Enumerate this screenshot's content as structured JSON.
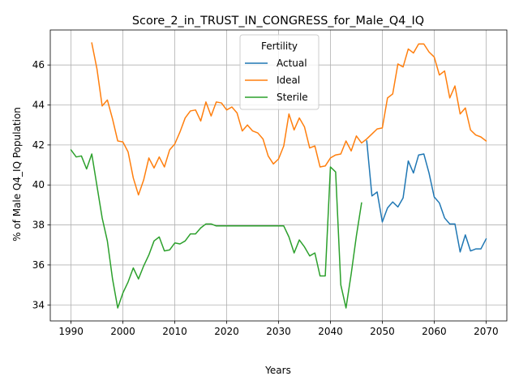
{
  "chart_data": {
    "type": "line",
    "title": "Score_2_in_TRUST_IN_CONGRESS_for_Male_Q4_IQ",
    "xlabel": "Years",
    "ylabel": "% of Male Q4_IQ Population",
    "xlim": [
      1986,
      2074
    ],
    "ylim": [
      33.2,
      47.75
    ],
    "xticks": [
      1990,
      2000,
      2010,
      2020,
      2030,
      2040,
      2050,
      2060,
      2070
    ],
    "yticks": [
      34,
      36,
      38,
      40,
      42,
      44,
      46
    ],
    "grid": true,
    "legend": {
      "title": "Fertility",
      "placement": "upper center"
    },
    "series": [
      {
        "name": "Actual",
        "color": "#1f77b4",
        "x": [
          2047,
          2048,
          2049,
          2050,
          2051,
          2052,
          2053,
          2054,
          2055,
          2056,
          2057,
          2058,
          2059,
          2060,
          2061,
          2062,
          2063,
          2064,
          2065,
          2066,
          2067,
          2068,
          2069,
          2070
        ],
        "y": [
          42.2,
          39.45,
          39.65,
          38.15,
          38.85,
          39.15,
          38.9,
          39.35,
          41.2,
          40.6,
          41.5,
          41.55,
          40.6,
          39.4,
          39.1,
          38.35,
          38.05,
          38.05,
          36.65,
          37.5,
          36.7,
          36.8,
          36.8,
          37.3
        ]
      },
      {
        "name": "Ideal",
        "color": "#ff7f0e",
        "x": [
          1994,
          1995,
          1996,
          1997,
          1998,
          1999,
          2000,
          2001,
          2002,
          2003,
          2004,
          2005,
          2006,
          2007,
          2008,
          2009,
          2010,
          2011,
          2012,
          2013,
          2014,
          2015,
          2016,
          2017,
          2018,
          2019,
          2020,
          2021,
          2022,
          2023,
          2024,
          2025,
          2026,
          2027,
          2028,
          2029,
          2030,
          2031,
          2032,
          2033,
          2034,
          2035,
          2036,
          2037,
          2038,
          2039,
          2040,
          2041,
          2042,
          2043,
          2044,
          2045,
          2046,
          2047,
          2048,
          2049,
          2050,
          2051,
          2052,
          2053,
          2054,
          2055,
          2056,
          2057,
          2058,
          2059,
          2060,
          2061,
          2062,
          2063,
          2064,
          2065,
          2066,
          2067,
          2068,
          2069,
          2070
        ],
        "y": [
          47.1,
          45.8,
          43.95,
          44.25,
          43.3,
          42.2,
          42.15,
          41.65,
          40.35,
          39.5,
          40.25,
          41.35,
          40.85,
          41.4,
          40.9,
          41.75,
          42.05,
          42.65,
          43.35,
          43.7,
          43.75,
          43.2,
          44.15,
          43.45,
          44.15,
          44.1,
          43.75,
          43.9,
          43.6,
          42.7,
          43.0,
          42.7,
          42.6,
          42.3,
          41.45,
          41.05,
          41.3,
          41.95,
          43.55,
          42.75,
          43.35,
          42.9,
          41.85,
          41.95,
          40.9,
          40.95,
          41.35,
          41.5,
          41.55,
          42.2,
          41.7,
          42.45,
          42.1,
          42.3,
          42.55,
          42.8,
          42.85,
          44.35,
          44.55,
          46.05,
          45.9,
          46.8,
          46.6,
          47.05,
          47.05,
          46.65,
          46.4,
          45.5,
          45.7,
          44.35,
          44.95,
          43.55,
          43.85,
          42.75,
          42.5,
          42.4,
          42.2
        ]
      },
      {
        "name": "Sterile",
        "color": "#2ca02c",
        "x": [
          1990,
          1991,
          1992,
          1993,
          1994,
          1995,
          1996,
          1997,
          1998,
          1999,
          2000,
          2001,
          2002,
          2003,
          2004,
          2005,
          2006,
          2007,
          2008,
          2009,
          2010,
          2011,
          2012,
          2013,
          2014,
          2015,
          2016,
          2017,
          2018,
          2019,
          2020,
          2021,
          2022,
          2023,
          2024,
          2025,
          2026,
          2027,
          2028,
          2029,
          2030,
          2031,
          2032,
          2033,
          2034,
          2035,
          2036,
          2037,
          2038,
          2039,
          2040,
          2041,
          2042,
          2043,
          2044,
          2045,
          2046
        ],
        "y": [
          41.75,
          41.4,
          41.45,
          40.8,
          41.55,
          39.95,
          38.35,
          37.2,
          35.3,
          33.85,
          34.6,
          35.15,
          35.85,
          35.3,
          35.95,
          36.5,
          37.2,
          37.4,
          36.7,
          36.75,
          37.1,
          37.05,
          37.2,
          37.55,
          37.55,
          37.85,
          38.05,
          38.05,
          37.95,
          37.95,
          37.95,
          37.95,
          37.95,
          37.95,
          37.95,
          37.95,
          37.95,
          37.95,
          37.95,
          37.95,
          37.95,
          37.95,
          37.4,
          36.6,
          37.25,
          36.9,
          36.45,
          36.6,
          35.45,
          35.45,
          40.9,
          40.65,
          35.0,
          33.85,
          35.55,
          37.45,
          39.1
        ]
      }
    ]
  }
}
